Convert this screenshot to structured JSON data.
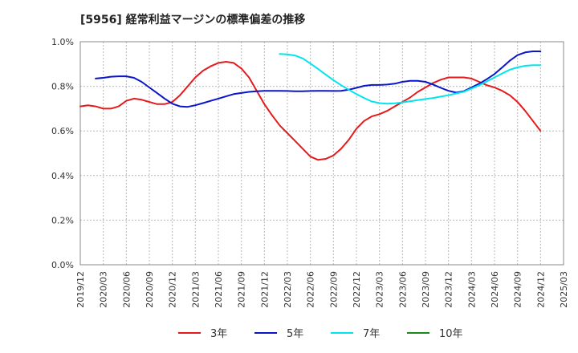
{
  "chart_data": {
    "type": "line",
    "title": "[5956]  経常利益マージンの標準偏差の推移",
    "xlabel": "",
    "ylabel": "",
    "ylim": [
      0,
      1.0
    ],
    "y_ticks": [
      "0.0%",
      "0.2%",
      "0.4%",
      "0.6%",
      "0.8%",
      "1.0%"
    ],
    "x_ticks": [
      "2019/12",
      "2020/03",
      "2020/06",
      "2020/09",
      "2020/12",
      "2021/03",
      "2021/06",
      "2021/09",
      "2021/12",
      "2022/03",
      "2022/06",
      "2022/09",
      "2022/12",
      "2023/03",
      "2023/06",
      "2023/09",
      "2023/12",
      "2024/03",
      "2024/06",
      "2024/09",
      "2024/12",
      "2025/03"
    ],
    "grid": true,
    "legend_position": "bottom",
    "series": [
      {
        "name": "3年",
        "color": "#e41a1c",
        "points": [
          [
            "2019/12",
            0.71
          ],
          [
            "2020/01",
            0.715
          ],
          [
            "2020/02",
            0.71
          ],
          [
            "2020/03",
            0.7
          ],
          [
            "2020/04",
            0.7
          ],
          [
            "2020/05",
            0.71
          ],
          [
            "2020/06",
            0.735
          ],
          [
            "2020/07",
            0.745
          ],
          [
            "2020/08",
            0.74
          ],
          [
            "2020/09",
            0.73
          ],
          [
            "2020/10",
            0.72
          ],
          [
            "2020/11",
            0.72
          ],
          [
            "2020/12",
            0.73
          ],
          [
            "2021/01",
            0.76
          ],
          [
            "2021/02",
            0.8
          ],
          [
            "2021/03",
            0.84
          ],
          [
            "2021/04",
            0.87
          ],
          [
            "2021/05",
            0.89
          ],
          [
            "2021/06",
            0.905
          ],
          [
            "2021/07",
            0.91
          ],
          [
            "2021/08",
            0.905
          ],
          [
            "2021/09",
            0.88
          ],
          [
            "2021/10",
            0.84
          ],
          [
            "2021/11",
            0.78
          ],
          [
            "2021/12",
            0.72
          ],
          [
            "2022/01",
            0.67
          ],
          [
            "2022/02",
            0.625
          ],
          [
            "2022/03",
            0.59
          ],
          [
            "2022/04",
            0.555
          ],
          [
            "2022/05",
            0.52
          ],
          [
            "2022/06",
            0.485
          ],
          [
            "2022/07",
            0.47
          ],
          [
            "2022/08",
            0.475
          ],
          [
            "2022/09",
            0.49
          ],
          [
            "2022/10",
            0.52
          ],
          [
            "2022/11",
            0.56
          ],
          [
            "2022/12",
            0.61
          ],
          [
            "2023/01",
            0.645
          ],
          [
            "2023/02",
            0.665
          ],
          [
            "2023/03",
            0.675
          ],
          [
            "2023/04",
            0.69
          ],
          [
            "2023/05",
            0.71
          ],
          [
            "2023/06",
            0.73
          ],
          [
            "2023/07",
            0.75
          ],
          [
            "2023/08",
            0.775
          ],
          [
            "2023/09",
            0.795
          ],
          [
            "2023/10",
            0.815
          ],
          [
            "2023/11",
            0.83
          ],
          [
            "2023/12",
            0.84
          ],
          [
            "2024/01",
            0.84
          ],
          [
            "2024/02",
            0.84
          ],
          [
            "2024/03",
            0.835
          ],
          [
            "2024/04",
            0.82
          ],
          [
            "2024/05",
            0.805
          ],
          [
            "2024/06",
            0.795
          ],
          [
            "2024/07",
            0.78
          ],
          [
            "2024/08",
            0.76
          ],
          [
            "2024/09",
            0.73
          ],
          [
            "2024/10",
            0.69
          ],
          [
            "2024/11",
            0.645
          ],
          [
            "2024/12",
            0.6
          ]
        ]
      },
      {
        "name": "5年",
        "color": "#0a14c8",
        "points": [
          [
            "2020/02",
            0.835
          ],
          [
            "2020/03",
            0.838
          ],
          [
            "2020/04",
            0.843
          ],
          [
            "2020/05",
            0.845
          ],
          [
            "2020/06",
            0.845
          ],
          [
            "2020/07",
            0.838
          ],
          [
            "2020/08",
            0.82
          ],
          [
            "2020/09",
            0.795
          ],
          [
            "2020/10",
            0.77
          ],
          [
            "2020/11",
            0.745
          ],
          [
            "2020/12",
            0.722
          ],
          [
            "2021/01",
            0.71
          ],
          [
            "2021/02",
            0.708
          ],
          [
            "2021/03",
            0.715
          ],
          [
            "2021/04",
            0.725
          ],
          [
            "2021/05",
            0.735
          ],
          [
            "2021/06",
            0.745
          ],
          [
            "2021/07",
            0.755
          ],
          [
            "2021/08",
            0.765
          ],
          [
            "2021/09",
            0.77
          ],
          [
            "2021/10",
            0.775
          ],
          [
            "2021/11",
            0.778
          ],
          [
            "2021/12",
            0.78
          ],
          [
            "2022/01",
            0.78
          ],
          [
            "2022/02",
            0.78
          ],
          [
            "2022/03",
            0.779
          ],
          [
            "2022/04",
            0.778
          ],
          [
            "2022/05",
            0.778
          ],
          [
            "2022/06",
            0.779
          ],
          [
            "2022/07",
            0.78
          ],
          [
            "2022/08",
            0.78
          ],
          [
            "2022/09",
            0.779
          ],
          [
            "2022/10",
            0.78
          ],
          [
            "2022/11",
            0.785
          ],
          [
            "2022/12",
            0.793
          ],
          [
            "2023/01",
            0.802
          ],
          [
            "2023/02",
            0.806
          ],
          [
            "2023/03",
            0.806
          ],
          [
            "2023/04",
            0.808
          ],
          [
            "2023/05",
            0.812
          ],
          [
            "2023/06",
            0.82
          ],
          [
            "2023/07",
            0.825
          ],
          [
            "2023/08",
            0.825
          ],
          [
            "2023/09",
            0.82
          ],
          [
            "2023/10",
            0.808
          ],
          [
            "2023/11",
            0.793
          ],
          [
            "2023/12",
            0.78
          ],
          [
            "2024/01",
            0.772
          ],
          [
            "2024/02",
            0.778
          ],
          [
            "2024/03",
            0.795
          ],
          [
            "2024/04",
            0.812
          ],
          [
            "2024/05",
            0.832
          ],
          [
            "2024/06",
            0.855
          ],
          [
            "2024/07",
            0.885
          ],
          [
            "2024/08",
            0.915
          ],
          [
            "2024/09",
            0.94
          ],
          [
            "2024/10",
            0.952
          ],
          [
            "2024/11",
            0.957
          ],
          [
            "2024/12",
            0.957
          ]
        ]
      },
      {
        "name": "7年",
        "color": "#00e5ee",
        "points": [
          [
            "2022/02",
            0.945
          ],
          [
            "2022/03",
            0.943
          ],
          [
            "2022/04",
            0.938
          ],
          [
            "2022/05",
            0.925
          ],
          [
            "2022/06",
            0.902
          ],
          [
            "2022/07",
            0.878
          ],
          [
            "2022/08",
            0.852
          ],
          [
            "2022/09",
            0.828
          ],
          [
            "2022/10",
            0.805
          ],
          [
            "2022/11",
            0.785
          ],
          [
            "2022/12",
            0.765
          ],
          [
            "2023/01",
            0.748
          ],
          [
            "2023/02",
            0.732
          ],
          [
            "2023/03",
            0.725
          ],
          [
            "2023/04",
            0.722
          ],
          [
            "2023/05",
            0.724
          ],
          [
            "2023/06",
            0.728
          ],
          [
            "2023/07",
            0.733
          ],
          [
            "2023/08",
            0.738
          ],
          [
            "2023/09",
            0.743
          ],
          [
            "2023/10",
            0.748
          ],
          [
            "2023/11",
            0.754
          ],
          [
            "2023/12",
            0.76
          ],
          [
            "2024/01",
            0.768
          ],
          [
            "2024/02",
            0.776
          ],
          [
            "2024/03",
            0.79
          ],
          [
            "2024/04",
            0.805
          ],
          [
            "2024/05",
            0.822
          ],
          [
            "2024/06",
            0.84
          ],
          [
            "2024/07",
            0.858
          ],
          [
            "2024/08",
            0.875
          ],
          [
            "2024/09",
            0.885
          ],
          [
            "2024/10",
            0.892
          ],
          [
            "2024/11",
            0.895
          ],
          [
            "2024/12",
            0.895
          ]
        ]
      },
      {
        "name": "10年",
        "color": "#1a8a1a",
        "points": []
      }
    ]
  }
}
